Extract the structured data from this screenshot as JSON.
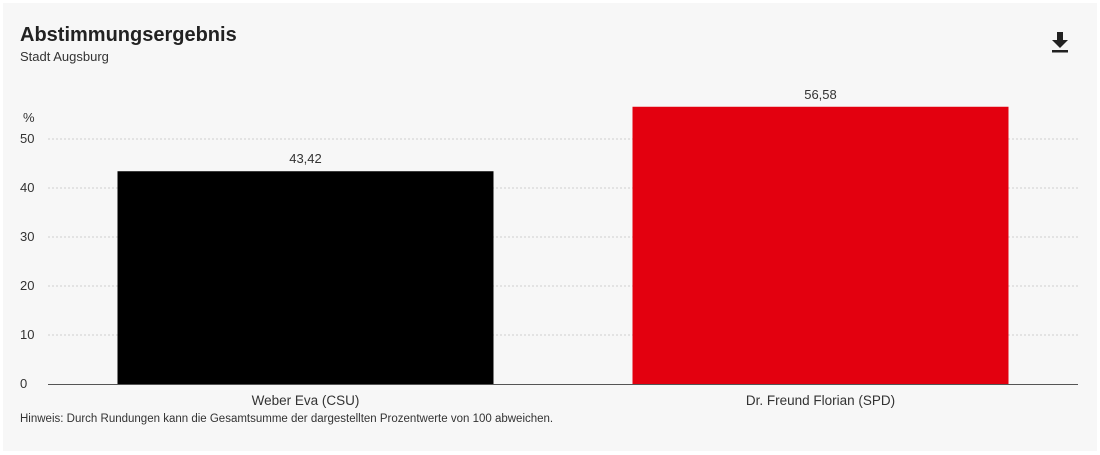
{
  "header": {
    "title": "Abstimmungsergebnis",
    "subtitle": "Stadt Augsburg",
    "download_icon": "download-icon"
  },
  "note": "Hinweis: Durch Rundungen kann die Gesamtsumme der dargestellten Prozentwerte von 100 abweichen.",
  "chart_data": {
    "type": "bar",
    "title": "Abstimmungsergebnis",
    "subtitle": "Stadt Augsburg",
    "ylabel": "%",
    "xlabel": "",
    "ylim": [
      0,
      50
    ],
    "yticks": [
      0,
      10,
      20,
      30,
      40,
      50
    ],
    "categories": [
      "Weber Eva (CSU)",
      "Dr. Freund Florian (SPD)"
    ],
    "values": [
      43.42,
      56.58
    ],
    "value_labels": [
      "43,42",
      "56,58"
    ],
    "colors": [
      "#000000",
      "#e3000f"
    ],
    "grid": true,
    "legend": "none"
  }
}
